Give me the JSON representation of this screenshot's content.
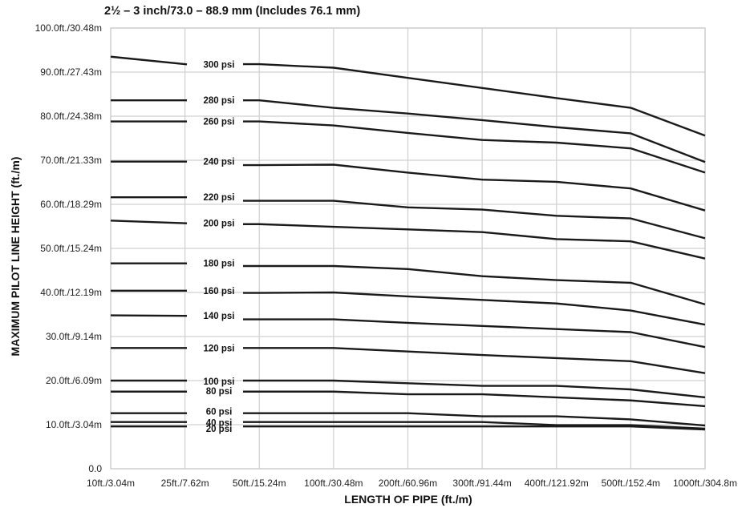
{
  "chart_data": {
    "type": "line",
    "title": "2½ – 3 inch/73.0 – 88.9 mm (Includes 76.1 mm)",
    "xlabel": "LENGTH OF PIPE (ft./m)",
    "ylabel": "MAXIMUM PILOT LINE HEIGHT (ft./m)",
    "categories": [
      "10ft./3.04m",
      "25ft./7.62m",
      "50ft./15.24m",
      "100ft./30.48m",
      "200ft./60.96m",
      "300ft./91.44m",
      "400ft./121.92m",
      "500ft./152.4m",
      "1000ft./304.8m"
    ],
    "y_tick_labels": [
      "0.0",
      "10.0ft./3.04m",
      "20.0ft./6.09m",
      "30.0ft./9.14m",
      "40.0ft./12.19m",
      "50.0ft./15.24m",
      "60.0ft./18.29m",
      "70.0ft./21.33m",
      "80.0ft./24.38m",
      "90.0ft./27.43m",
      "100.0ft./30.48m"
    ],
    "ylim": [
      0,
      100
    ],
    "grid": true,
    "series": [
      {
        "name": "300 psi",
        "values": [
          93.5,
          91.8,
          91.8,
          91.0,
          88.7,
          86.4,
          84.1,
          81.9,
          75.6
        ]
      },
      {
        "name": "280 psi",
        "values": [
          83.6,
          83.6,
          83.6,
          81.9,
          80.6,
          79.1,
          77.5,
          76.1,
          69.6
        ]
      },
      {
        "name": "260 psi",
        "values": [
          78.8,
          78.8,
          78.8,
          77.9,
          76.2,
          74.6,
          74.0,
          72.7,
          67.2
        ]
      },
      {
        "name": "240 psi",
        "values": [
          69.7,
          69.7,
          68.9,
          69.0,
          67.2,
          65.6,
          65.1,
          63.6,
          58.6
        ]
      },
      {
        "name": "220 psi",
        "values": [
          61.6,
          61.6,
          60.8,
          60.8,
          59.3,
          58.8,
          57.4,
          56.8,
          52.3
        ]
      },
      {
        "name": "200 psi",
        "values": [
          56.3,
          55.7,
          55.5,
          54.9,
          54.3,
          53.7,
          52.1,
          51.6,
          47.7
        ]
      },
      {
        "name": "180 psi",
        "values": [
          46.6,
          46.6,
          46.0,
          46.0,
          45.3,
          43.7,
          42.8,
          42.2,
          37.3
        ]
      },
      {
        "name": "160 psi",
        "values": [
          40.4,
          40.4,
          39.9,
          40.0,
          39.1,
          38.3,
          37.5,
          35.9,
          32.7
        ]
      },
      {
        "name": "140 psi",
        "values": [
          34.8,
          34.7,
          33.9,
          33.9,
          33.1,
          32.4,
          31.7,
          31.0,
          27.6
        ]
      },
      {
        "name": "120 psi",
        "values": [
          27.4,
          27.4,
          27.4,
          27.4,
          26.6,
          25.8,
          25.1,
          24.4,
          21.7
        ]
      },
      {
        "name": "100 psi",
        "values": [
          20.0,
          20.0,
          20.0,
          20.0,
          19.4,
          18.8,
          18.8,
          18.0,
          16.2
        ]
      },
      {
        "name": "80 psi",
        "values": [
          17.5,
          17.5,
          17.5,
          17.5,
          16.9,
          16.9,
          16.2,
          15.5,
          14.2
        ]
      },
      {
        "name": "60 psi",
        "values": [
          12.6,
          12.6,
          12.6,
          12.6,
          12.6,
          11.9,
          11.9,
          11.2,
          9.8
        ]
      },
      {
        "name": "40 psi",
        "values": [
          10.6,
          10.6,
          10.6,
          10.6,
          10.6,
          10.6,
          9.9,
          9.9,
          9.1
        ]
      },
      {
        "name": "20 psi",
        "values": [
          9.6,
          9.6,
          9.6,
          9.6,
          9.6,
          9.6,
          9.6,
          9.6,
          8.9
        ]
      }
    ]
  }
}
